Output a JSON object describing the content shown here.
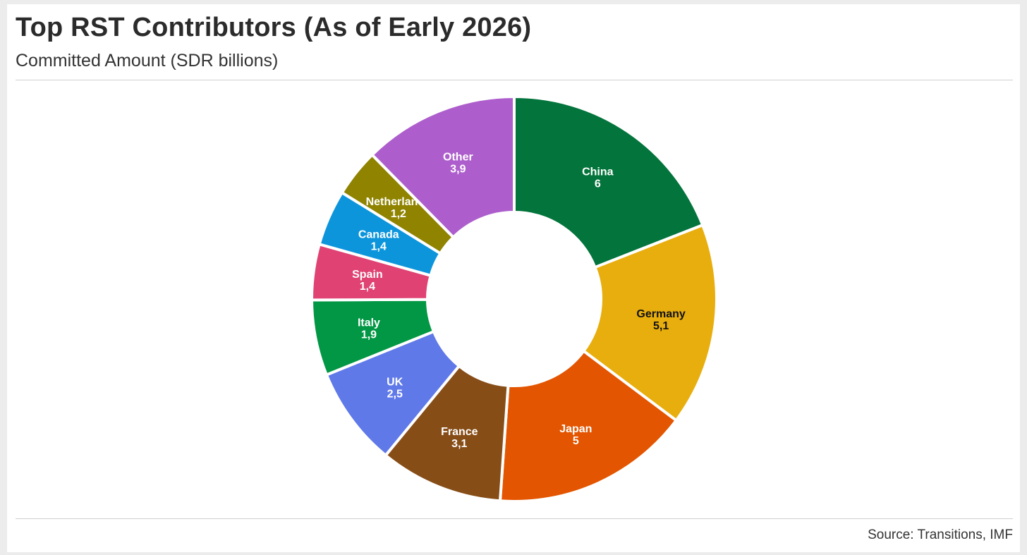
{
  "title": "Top RST Contributors (As of Early 2026)",
  "subtitle": "Committed Amount (SDR billions)",
  "source": "Source: Transitions, IMF",
  "chart_data": {
    "type": "pie",
    "donut": true,
    "legend": "none",
    "data_labels": "inside",
    "slices": [
      {
        "label": "China",
        "value": 6,
        "display": "6",
        "color": "#03743b",
        "text_color": "#ffffff"
      },
      {
        "label": "Germany",
        "value": 5.1,
        "display": "5,1",
        "color": "#e8ae0e",
        "text_color": "#111111"
      },
      {
        "label": "Japan",
        "value": 5,
        "display": "5",
        "color": "#e35500",
        "text_color": "#ffffff"
      },
      {
        "label": "France",
        "value": 3.1,
        "display": "3,1",
        "color": "#874d17",
        "text_color": "#ffffff"
      },
      {
        "label": "UK",
        "value": 2.5,
        "display": "2,5",
        "color": "#5f79e8",
        "text_color": "#ffffff"
      },
      {
        "label": "Italy",
        "value": 1.9,
        "display": "1,9",
        "color": "#029744",
        "text_color": "#ffffff"
      },
      {
        "label": "Spain",
        "value": 1.4,
        "display": "1,4",
        "color": "#df4273",
        "text_color": "#ffffff"
      },
      {
        "label": "Canada",
        "value": 1.4,
        "display": "1,4",
        "color": "#0d95dc",
        "text_color": "#ffffff"
      },
      {
        "label": "Netherlands",
        "value": 1.2,
        "display": "1,2",
        "color": "#8f8300",
        "text_color": "#ffffff"
      },
      {
        "label": "Other",
        "value": 3.9,
        "display": "3,9",
        "color": "#ad5ecc",
        "text_color": "#ffffff"
      }
    ]
  }
}
